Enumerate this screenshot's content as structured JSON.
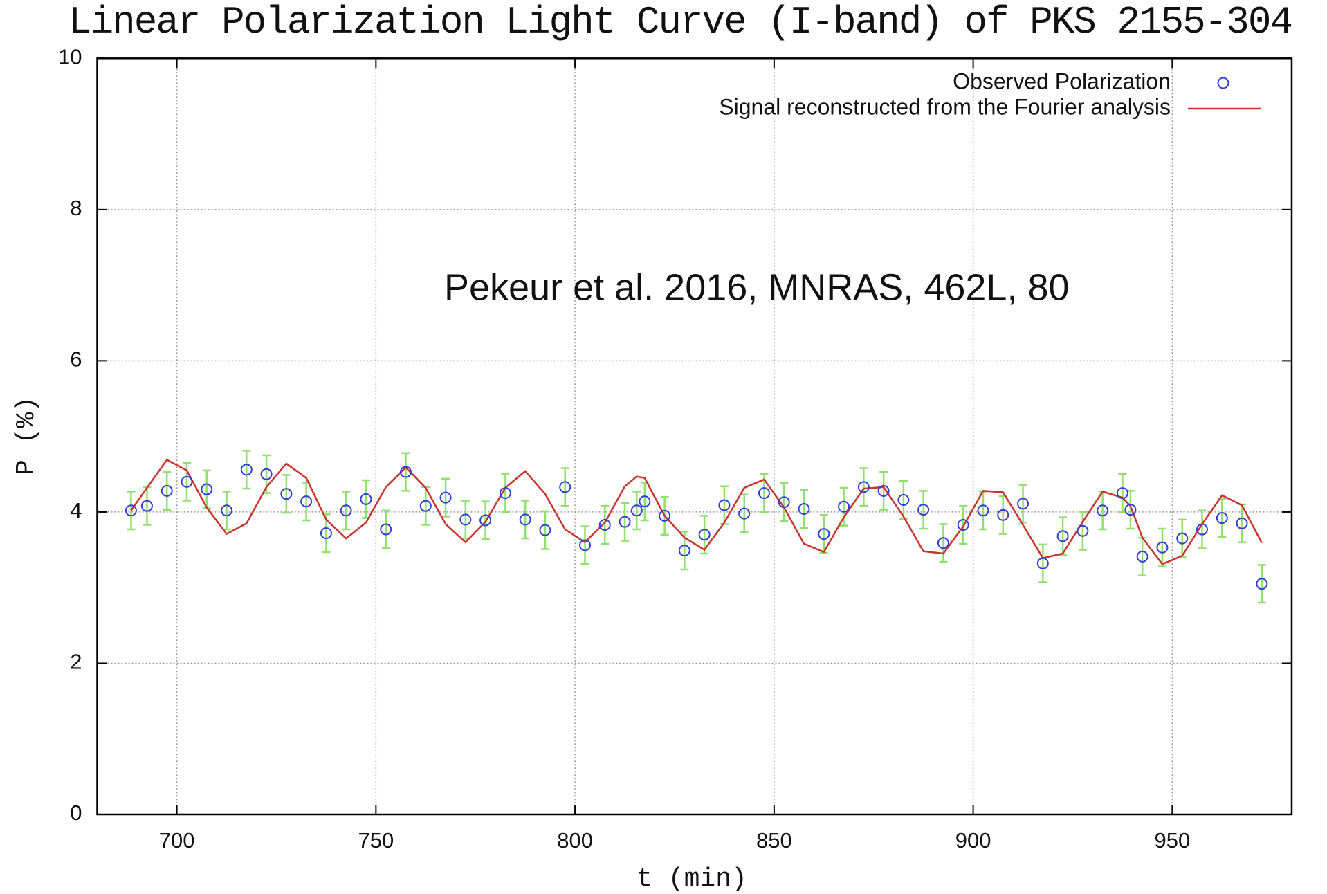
{
  "chart_data": {
    "type": "scatter",
    "title": "Linear Polarization Light Curve (I-band) of PKS 2155-304",
    "x_label": "t (min)",
    "y_label": "P (%)",
    "annotation": "Pekeur et al. 2016, MNRAS, 462L, 80",
    "xlim": [
      680,
      980
    ],
    "ylim": [
      0,
      10
    ],
    "xticks": [
      700,
      750,
      800,
      850,
      900,
      950
    ],
    "yticks": [
      0,
      2,
      4,
      6,
      8,
      10
    ],
    "grid": true,
    "legend": "upper right",
    "x": [
      688.5,
      692.5,
      697.5,
      702.5,
      707.5,
      712.5,
      717.5,
      722.5,
      727.5,
      732.5,
      737.5,
      742.5,
      747.5,
      752.5,
      757.5,
      762.5,
      767.5,
      772.5,
      777.5,
      782.5,
      787.5,
      792.5,
      797.5,
      802.5,
      807.5,
      812.5,
      815.5,
      817.5,
      822.5,
      827.5,
      832.5,
      837.5,
      842.5,
      847.5,
      852.5,
      857.5,
      862.5,
      867.5,
      872.5,
      877.5,
      882.5,
      887.5,
      892.5,
      897.5,
      902.5,
      907.5,
      912.5,
      917.5,
      922.5,
      927.5,
      932.5,
      937.5,
      939.5,
      942.5,
      947.5,
      952.5,
      957.5,
      962.5,
      967.5,
      972.5
    ],
    "series": [
      {
        "name": "Observed Polarization",
        "color": "#2f3fd6",
        "error_color": "#8fe06c",
        "values": [
          4.02,
          4.08,
          4.28,
          4.4,
          4.3,
          4.02,
          4.56,
          4.5,
          4.24,
          4.14,
          3.72,
          4.02,
          4.17,
          3.77,
          4.53,
          4.08,
          4.19,
          3.9,
          3.89,
          4.25,
          3.9,
          3.76,
          4.33,
          3.56,
          3.83,
          3.87,
          4.02,
          4.14,
          3.95,
          3.49,
          3.7,
          4.09,
          3.98,
          4.25,
          4.13,
          4.04,
          3.71,
          4.07,
          4.33,
          4.28,
          4.16,
          4.03,
          3.59,
          3.83,
          4.02,
          3.96,
          4.11,
          3.32,
          3.68,
          3.75,
          4.02,
          4.25,
          4.03,
          3.41,
          3.53,
          3.65,
          3.77,
          3.92,
          3.85,
          3.05
        ],
        "errors": [
          0.25,
          0.25,
          0.25,
          0.25,
          0.25,
          0.25,
          0.25,
          0.25,
          0.25,
          0.25,
          0.25,
          0.25,
          0.25,
          0.25,
          0.25,
          0.25,
          0.25,
          0.25,
          0.25,
          0.25,
          0.25,
          0.25,
          0.25,
          0.25,
          0.25,
          0.25,
          0.25,
          0.25,
          0.25,
          0.25,
          0.25,
          0.25,
          0.25,
          0.25,
          0.25,
          0.25,
          0.25,
          0.25,
          0.25,
          0.25,
          0.25,
          0.25,
          0.25,
          0.25,
          0.25,
          0.25,
          0.25,
          0.25,
          0.25,
          0.25,
          0.25,
          0.25,
          0.25,
          0.25,
          0.25,
          0.25,
          0.25,
          0.25,
          0.25,
          0.25
        ]
      },
      {
        "name": "Signal reconstructed from the Fourier analysis",
        "color": "#c8342c",
        "values": [
          4.02,
          4.32,
          4.69,
          4.55,
          4.06,
          3.71,
          3.85,
          4.33,
          4.64,
          4.45,
          3.9,
          3.65,
          3.86,
          4.33,
          4.59,
          4.32,
          3.84,
          3.6,
          3.87,
          4.32,
          4.54,
          4.24,
          3.77,
          3.6,
          3.86,
          4.34,
          4.47,
          4.45,
          3.95,
          3.66,
          3.5,
          3.86,
          4.32,
          4.43,
          4.06,
          3.58,
          3.47,
          3.93,
          4.31,
          4.33,
          3.94,
          3.48,
          3.45,
          3.81,
          4.28,
          4.26,
          3.83,
          3.39,
          3.45,
          3.87,
          4.27,
          4.19,
          4.08,
          3.66,
          3.31,
          3.42,
          3.84,
          4.22,
          4.09,
          3.59
        ]
      }
    ]
  }
}
